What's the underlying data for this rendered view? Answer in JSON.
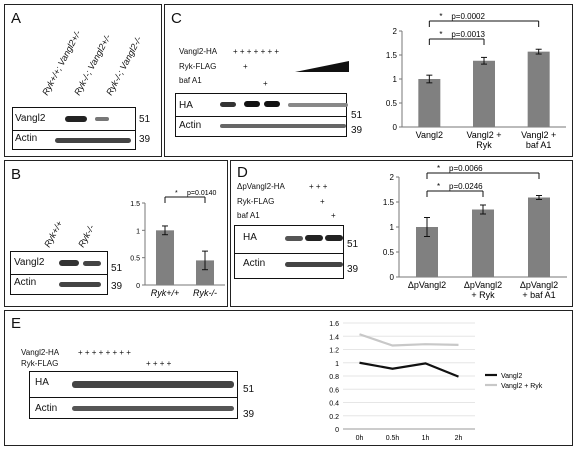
{
  "panels": {
    "A": {
      "label": "A",
      "lanes": [
        "Ryk+/+; Vangl2+/-",
        "Ryk-/-; Vangl2+/-",
        "Ryk-/-; Vangl2-/-"
      ],
      "rows": [
        "Vangl2",
        "Actin"
      ],
      "mw": [
        "51",
        "39"
      ]
    },
    "B": {
      "label": "B",
      "lanes": [
        "Ryk+/+",
        "Ryk-/-"
      ],
      "rows": [
        "Vangl2",
        "Actin"
      ],
      "mw": [
        "51",
        "39"
      ]
    },
    "C": {
      "label": "C",
      "treatments": [
        {
          "name": "Vangl2-HA",
          "marks": "+   +   +   +   +   +   +"
        },
        {
          "name": "Ryk-FLAG",
          "marks": "+"
        },
        {
          "name": "baf A1",
          "marks": "+"
        }
      ],
      "rows": [
        "HA",
        "Actin"
      ],
      "mw": [
        "51",
        "39"
      ]
    },
    "D": {
      "label": "D",
      "treatments": [
        {
          "name": "ΔpVangl2-HA",
          "marks": "+     +     +"
        },
        {
          "name": "Ryk-FLAG",
          "marks": "+"
        },
        {
          "name": "baf A1",
          "marks": "+"
        }
      ],
      "rows": [
        "HA",
        "Actin"
      ],
      "mw": [
        "51",
        "39"
      ]
    },
    "E": {
      "label": "E",
      "treatments": [
        {
          "name": "Vangl2-HA",
          "marks": "+    +    +    +    +    +    +    +"
        },
        {
          "name": "Ryk-FLAG",
          "marks": "+    +    +    +"
        }
      ],
      "rows": [
        "HA",
        "Actin"
      ],
      "mw": [
        "51",
        "39"
      ]
    }
  },
  "chart_data": [
    {
      "id": "B",
      "type": "bar",
      "categories": [
        "Ryk+/+",
        "Ryk-/-"
      ],
      "values": [
        1.0,
        0.45
      ],
      "errors": [
        0.08,
        0.17
      ],
      "ylim": [
        0,
        1.5
      ],
      "yticks": [
        "0",
        "0.5",
        "1",
        "1.5"
      ],
      "annotation": {
        "star": "*",
        "text": "p=0.0140"
      }
    },
    {
      "id": "C",
      "type": "bar",
      "categories": [
        "Vangl2",
        "Vangl2 +\nRyk",
        "Vangl2 +\nbaf A1"
      ],
      "values": [
        1.0,
        1.38,
        1.57
      ],
      "errors": [
        0.08,
        0.07,
        0.05
      ],
      "ylim": [
        0,
        2
      ],
      "yticks": [
        "0",
        "0.5",
        "1",
        "1.5",
        "2"
      ],
      "annotations": [
        {
          "star": "*",
          "text": "p=0.0002"
        },
        {
          "star": "*",
          "text": "p=0.0013"
        }
      ]
    },
    {
      "id": "D",
      "type": "bar",
      "categories": [
        "ΔpVangl2",
        "ΔpVangl2\n+ Ryk",
        "ΔpVangl2\n+ baf A1"
      ],
      "values": [
        1.0,
        1.35,
        1.59
      ],
      "errors": [
        0.19,
        0.09,
        0.04
      ],
      "ylim": [
        0,
        2
      ],
      "yticks": [
        "0",
        "0.5",
        "1",
        "1.5",
        "2"
      ],
      "annotations": [
        {
          "star": "*",
          "text": "p=0.0066"
        },
        {
          "star": "*",
          "text": "p=0.0246"
        }
      ]
    },
    {
      "id": "E",
      "type": "line",
      "x": [
        "0h",
        "0.5h",
        "1h",
        "2h"
      ],
      "ylim": [
        0,
        1.6
      ],
      "yticks": [
        "0",
        "0.2",
        "0.4",
        "0.6",
        "0.8",
        "1",
        "1.2",
        "1.4",
        "1.6"
      ],
      "series": [
        {
          "name": "Vangl2",
          "values": [
            1.0,
            0.91,
            0.99,
            0.79
          ],
          "color": "#111111"
        },
        {
          "name": "Vangl2 + Ryk",
          "values": [
            1.43,
            1.26,
            1.28,
            1.27
          ],
          "color": "#c8c8c8"
        }
      ]
    }
  ]
}
